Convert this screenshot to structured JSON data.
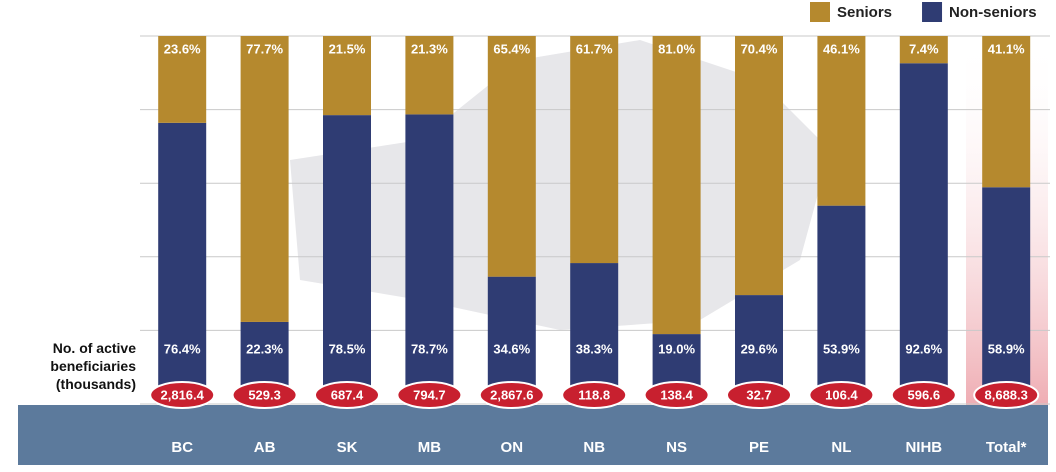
{
  "chart_data": {
    "type": "stacked-bar-100",
    "categories": [
      "BC",
      "AB",
      "SK",
      "MB",
      "ON",
      "NB",
      "NS",
      "PE",
      "NL",
      "NIHB",
      "Total*"
    ],
    "series": [
      {
        "name": "Non-seniors",
        "color": "#2f3c73",
        "values": [
          76.4,
          22.3,
          78.5,
          78.7,
          34.6,
          38.3,
          19.0,
          29.6,
          53.9,
          92.6,
          58.9
        ],
        "value_labels": [
          "76.4%",
          "22.3%",
          "78.5%",
          "78.7%",
          "34.6%",
          "38.3%",
          "19.0%",
          "29.6%",
          "53.9%",
          "92.6%",
          "58.9%"
        ]
      },
      {
        "name": "Seniors",
        "color": "#b5892e",
        "values": [
          23.6,
          77.7,
          21.5,
          21.3,
          65.4,
          61.7,
          81.0,
          70.4,
          46.1,
          7.4,
          41.1
        ],
        "value_labels": [
          "23.6%",
          "77.7%",
          "21.5%",
          "21.3%",
          "65.4%",
          "61.7%",
          "81.0%",
          "70.4%",
          "46.1%",
          "7.4%",
          "41.1%"
        ]
      }
    ],
    "totals_label": "No. of active beneficiaries (thousands)",
    "totals": [
      2816.4,
      529.3,
      687.4,
      794.7,
      2867.6,
      118.8,
      138.4,
      32.7,
      106.4,
      596.6,
      8688.3
    ],
    "total_labels": [
      "2,816.4",
      "529.3",
      "687.4",
      "794.7",
      "2,867.6",
      "118.8",
      "138.4",
      "32.7",
      "106.4",
      "596.6",
      "8,688.3"
    ],
    "totals_color": "#c8202f",
    "ylim": [
      0,
      100
    ],
    "yticks": [
      0,
      20,
      40,
      60,
      80,
      100
    ],
    "grid": true,
    "legend_position": "top-right"
  }
}
